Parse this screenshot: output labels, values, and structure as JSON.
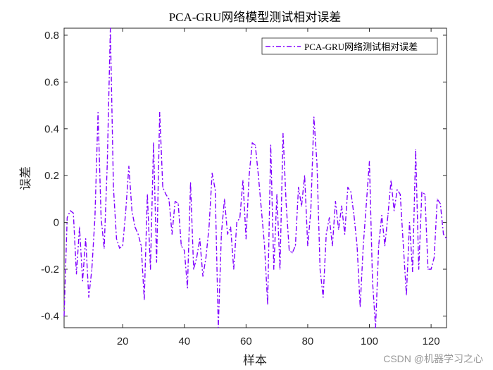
{
  "chart_data": {
    "type": "line",
    "title": "PCA-GRU网络模型测试相对误差",
    "xlabel": "样本",
    "ylabel": "误差",
    "xlim": [
      1,
      125
    ],
    "ylim": [
      -0.45,
      0.83
    ],
    "xticks": [
      20,
      40,
      60,
      80,
      100,
      120
    ],
    "yticks": [
      -0.4,
      -0.2,
      0,
      0.2,
      0.4,
      0.6,
      0.8
    ],
    "ytick_labels": [
      "-0.4",
      "-0.2",
      "0",
      "0.2",
      "0.4",
      "0.6",
      "0.8"
    ],
    "legend_position": "top-right",
    "grid": false,
    "series": [
      {
        "name": "PCA-GRU网络测试相对误差",
        "color": "#8000FF",
        "line_style": "dash-dot",
        "x": [
          1,
          2,
          3,
          4,
          5,
          6,
          7,
          8,
          9,
          10,
          11,
          12,
          13,
          14,
          15,
          16,
          17,
          18,
          19,
          20,
          21,
          22,
          23,
          24,
          25,
          26,
          27,
          28,
          29,
          30,
          31,
          32,
          33,
          34,
          35,
          36,
          37,
          38,
          39,
          40,
          41,
          42,
          43,
          44,
          45,
          46,
          47,
          48,
          49,
          50,
          51,
          52,
          53,
          54,
          55,
          56,
          57,
          58,
          59,
          60,
          61,
          62,
          63,
          64,
          65,
          66,
          67,
          68,
          69,
          70,
          71,
          72,
          73,
          74,
          75,
          76,
          77,
          78,
          79,
          80,
          81,
          82,
          83,
          84,
          85,
          86,
          87,
          88,
          89,
          90,
          91,
          92,
          93,
          94,
          95,
          96,
          97,
          98,
          99,
          100,
          101,
          102,
          103,
          104,
          105,
          106,
          107,
          108,
          109,
          110,
          111,
          112,
          113,
          114,
          115,
          116,
          117,
          118,
          119,
          120,
          121,
          122,
          123,
          124,
          125
        ],
        "y": [
          -0.4,
          0.02,
          0.05,
          0.04,
          -0.22,
          -0.02,
          -0.25,
          -0.07,
          -0.32,
          -0.2,
          0.02,
          0.47,
          0.02,
          -0.11,
          0.25,
          0.83,
          0.15,
          -0.07,
          -0.11,
          -0.1,
          0.05,
          0.24,
          0.05,
          -0.02,
          -0.05,
          -0.1,
          -0.33,
          0.12,
          -0.2,
          0.34,
          -0.17,
          0.47,
          0.15,
          0.12,
          0.1,
          -0.05,
          0.09,
          0.08,
          -0.1,
          -0.12,
          -0.28,
          0.17,
          -0.2,
          -0.15,
          -0.07,
          -0.23,
          -0.15,
          -0.02,
          0.21,
          0.14,
          -0.45,
          -0.05,
          0.1,
          -0.05,
          -0.02,
          -0.2,
          0,
          0.02,
          0.18,
          -0.07,
          0.2,
          0.34,
          0.33,
          0.2,
          0.05,
          -0.1,
          -0.35,
          0.33,
          -0.2,
          0.12,
          -0.2,
          0.38,
          0.08,
          -0.12,
          -0.13,
          -0.1,
          0.15,
          0.07,
          0.2,
          -0.1,
          0.05,
          0.45,
          0.25,
          -0.2,
          -0.32,
          -0.05,
          0.02,
          -0.1,
          0.09,
          -0.03,
          0.07,
          -0.05,
          0.15,
          0.13,
          0.03,
          -0.1,
          -0.36,
          -0.1,
          0.08,
          0.26,
          -0.25,
          -0.45,
          -0.1,
          0.03,
          -0.1,
          0.03,
          0.18,
          0.05,
          0.14,
          0.12,
          -0.1,
          -0.31,
          0,
          -0.21,
          0.31,
          -0.2,
          0.13,
          0.12,
          -0.2,
          -0.2,
          -0.15,
          0.1,
          0.08,
          -0.05,
          -0.07
        ]
      }
    ]
  },
  "watermark": "CSDN @机器学习之心"
}
